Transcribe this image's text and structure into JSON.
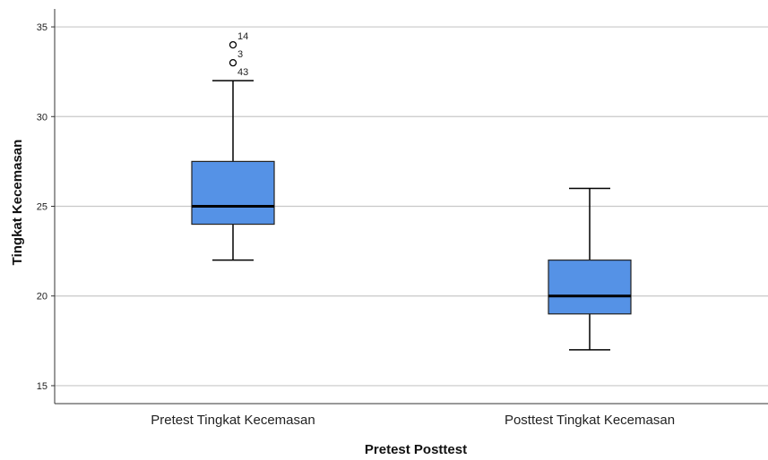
{
  "chart_data": {
    "type": "box",
    "xlabel": "Pretest Posttest",
    "ylabel": "Tingkat Kecemasan",
    "ylim": [
      14,
      36
    ],
    "yticks": [
      15,
      20,
      25,
      30,
      35
    ],
    "grid": true,
    "box_color": "#5592e6",
    "categories": [
      "Pretest Tingkat Kecemasan",
      "Posttest Tingkat Kecemasan"
    ],
    "boxes": [
      {
        "category": "Pretest Tingkat Kecemasan",
        "whisker_low": 22,
        "q1": 24,
        "median": 25,
        "q3": 27.5,
        "whisker_high": 32,
        "outliers": [
          {
            "value": 34,
            "label": "14"
          },
          {
            "value": 33,
            "label": "3"
          },
          {
            "value": 33,
            "label": "43"
          }
        ]
      },
      {
        "category": "Posttest Tingkat Kecemasan",
        "whisker_low": 17,
        "q1": 19,
        "median": 20,
        "q3": 22,
        "whisker_high": 26,
        "outliers": []
      }
    ]
  }
}
